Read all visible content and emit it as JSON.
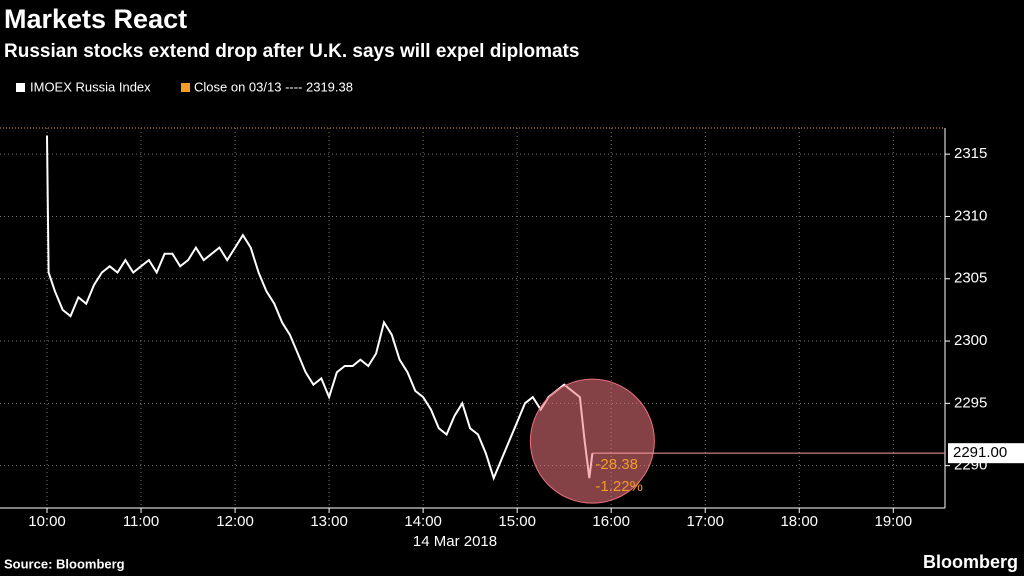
{
  "chart_data": {
    "type": "line",
    "title": "Markets React",
    "subtitle": "Russian stocks extend drop after U.K. says will expel diplomats",
    "close_legend": "Close on 03/13 ---- 2319.38",
    "close_color": "#f39c26",
    "x_date_label": "14 Mar 2018",
    "source": "Source: Bloomberg",
    "brand": "Bloomberg",
    "last_label": "2291.00",
    "change_labels": [
      "-28.38",
      "-1.22%"
    ],
    "grid": true,
    "xlim": [
      570,
      1173
    ],
    "xticks": [
      {
        "value": 600,
        "label": "10:00"
      },
      {
        "value": 660,
        "label": "11:00"
      },
      {
        "value": 720,
        "label": "12:00"
      },
      {
        "value": 780,
        "label": "13:00"
      },
      {
        "value": 840,
        "label": "14:00"
      },
      {
        "value": 900,
        "label": "15:00"
      },
      {
        "value": 960,
        "label": "16:00"
      },
      {
        "value": 1020,
        "label": "17:00"
      },
      {
        "value": 1080,
        "label": "18:00"
      },
      {
        "value": 1140,
        "label": "19:00"
      }
    ],
    "ylim": [
      2286.6,
      2317.1
    ],
    "yticks": [
      2290,
      2295,
      2300,
      2305,
      2310,
      2315
    ],
    "x": [
      600,
      601,
      605,
      610,
      615,
      620,
      625,
      630,
      635,
      640,
      645,
      650,
      655,
      660,
      665,
      670,
      675,
      680,
      685,
      690,
      695,
      700,
      705,
      710,
      715,
      720,
      725,
      730,
      735,
      740,
      745,
      750,
      755,
      760,
      765,
      770,
      775,
      780,
      785,
      790,
      795,
      800,
      805,
      810,
      815,
      820,
      825,
      830,
      835,
      840,
      845,
      850,
      855,
      860,
      865,
      870,
      875,
      880,
      885,
      890,
      895,
      900,
      905,
      910,
      915,
      920,
      925,
      930,
      935,
      940,
      943,
      946,
      948
    ],
    "series": [
      {
        "name": "IMOEX Russia Index",
        "color": "#ffffff",
        "values": [
          2316.5,
          2305.5,
          2304,
          2302.5,
          2302,
          2303.5,
          2303,
          2304.5,
          2305.5,
          2306,
          2305.5,
          2306.5,
          2305.5,
          2306,
          2306.5,
          2305.5,
          2307,
          2307,
          2306,
          2306.5,
          2307.5,
          2306.5,
          2307,
          2307.5,
          2306.5,
          2307.5,
          2308.5,
          2307.5,
          2305.5,
          2304,
          2303,
          2301.5,
          2300.5,
          2299,
          2297.5,
          2296.5,
          2297,
          2295.5,
          2297.5,
          2298,
          2298,
          2298.5,
          2298,
          2299,
          2301.5,
          2300.5,
          2298.5,
          2297.5,
          2296,
          2295.5,
          2294.5,
          2293,
          2292.5,
          2294,
          2295,
          2293,
          2292.5,
          2291,
          2289,
          2290.5,
          2292,
          2293.5,
          2295,
          2295.5,
          2294.5,
          2295.5,
          2296,
          2296.5,
          2296,
          2295.5,
          2292,
          2289,
          2291
        ]
      }
    ]
  }
}
